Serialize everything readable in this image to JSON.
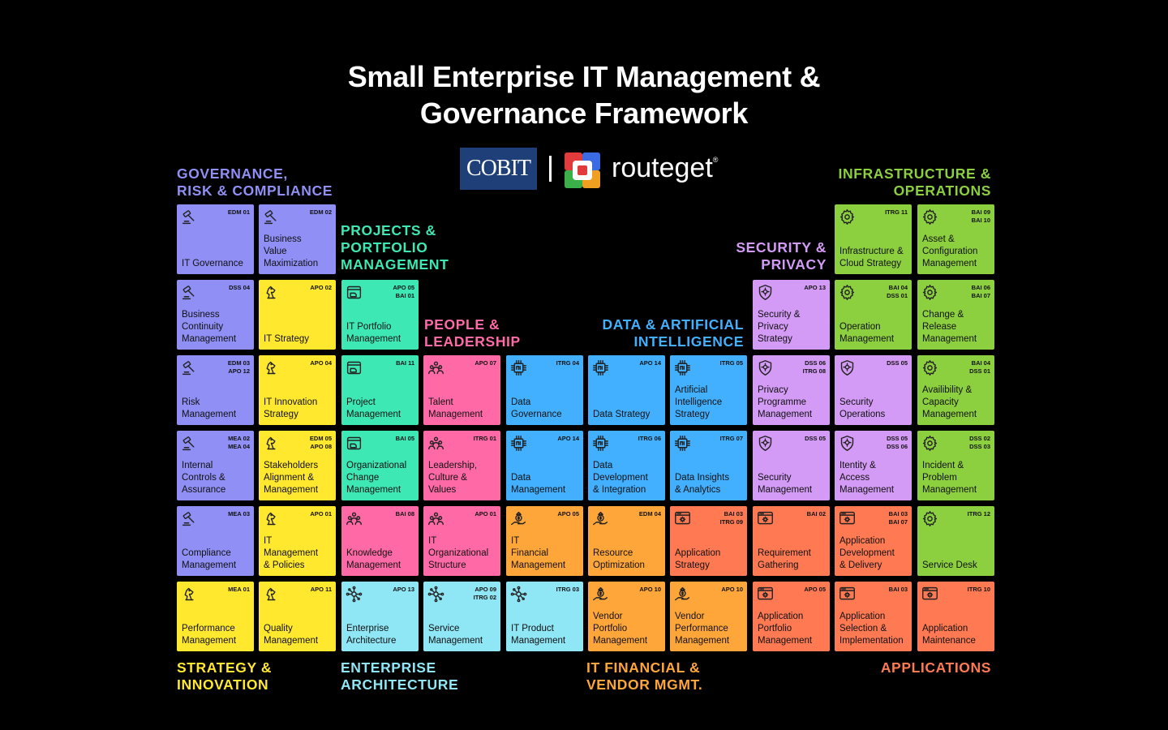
{
  "title": {
    "line1": "Small Enterprise IT Management &",
    "line2": "Governance Framework"
  },
  "logos": {
    "cobit": "COBIT",
    "brand": "routeget",
    "reg_mark": "®"
  },
  "categories": [
    {
      "id": "grc",
      "line1": "GOVERNANCE,",
      "line2": "RISK & COMPLIANCE",
      "color": "#8f8ff5"
    },
    {
      "id": "ppm",
      "line1": "PROJECTS &",
      "line2": "PORTFOLIO",
      "line3": "MANAGEMENT",
      "color": "#3de8b4"
    },
    {
      "id": "people",
      "line1": "PEOPLE &",
      "line2": "LEADERSHIP",
      "color": "#ff6aa6"
    },
    {
      "id": "data",
      "line1": "DATA & ARTIFICIAL",
      "line2": "INTELLIGENCE",
      "color": "#42b0ff"
    },
    {
      "id": "sec",
      "line1": "SECURITY &",
      "line2": "PRIVACY",
      "color": "#d39bf5"
    },
    {
      "id": "infra",
      "line1": "INFRASTRUCTURE &",
      "line2": "OPERATIONS",
      "color": "#8ccf3f"
    },
    {
      "id": "strategy",
      "line1": "STRATEGY &",
      "line2": "INNOVATION",
      "color": "#ffe82e"
    },
    {
      "id": "ea",
      "line1": "ENTERPRISE",
      "line2": "ARCHITECTURE",
      "color": "#8fe6f5"
    },
    {
      "id": "fin",
      "line1": "IT FINANCIAL &",
      "line2": "VENDOR MGMT.",
      "color": "#ffa63a"
    },
    {
      "id": "apps",
      "line1": "APPLICATIONS",
      "color": "#ff7a52"
    }
  ],
  "colors": {
    "grc": "#8f8ff5",
    "strategy": "#ffe82e",
    "ppm": "#3de8b4",
    "people": "#ff6aa6",
    "data": "#42b0ff",
    "sec": "#d39bf5",
    "infra": "#8ccf3f",
    "ea": "#8fe6f5",
    "fin": "#ffa63a",
    "apps": "#ff7a52"
  },
  "tiles": [
    {
      "row": 0,
      "col": 0,
      "cat": "grc",
      "icon": "gavel-icon",
      "code": "EDM 01",
      "name": "IT Governance"
    },
    {
      "row": 0,
      "col": 1,
      "cat": "grc",
      "icon": "gavel-icon",
      "code": "EDM 02",
      "name": "Business\nValue\nMaximization"
    },
    {
      "row": 0,
      "col": 8,
      "cat": "infra",
      "icon": "gear-icon",
      "code": "ITRG 11",
      "name": "Infrastructure &\nCloud Strategy"
    },
    {
      "row": 0,
      "col": 9,
      "cat": "infra",
      "icon": "gear-icon",
      "code": "BAI 09\nBAI 10",
      "name": "Asset &\nConfiguration\nManagement"
    },
    {
      "row": 1,
      "col": 0,
      "cat": "grc",
      "icon": "gavel-icon",
      "code": "DSS 04",
      "name": "Business\nContinuity\nManagement"
    },
    {
      "row": 1,
      "col": 1,
      "cat": "strategy",
      "icon": "chess-knight-icon",
      "code": "APO 02",
      "name": "IT Strategy"
    },
    {
      "row": 1,
      "col": 2,
      "cat": "ppm",
      "icon": "portfolio-window-icon",
      "code": "APO 05\nBAI 01",
      "name": "IT Portfolio\nManagement"
    },
    {
      "row": 1,
      "col": 7,
      "cat": "sec",
      "icon": "shield-virus-icon",
      "code": "APO 13",
      "name": "Security &\nPrivacy\nStrategy"
    },
    {
      "row": 1,
      "col": 8,
      "cat": "infra",
      "icon": "gear-icon",
      "code": "BAI 04\nDSS 01",
      "name": "Operation\nManagement"
    },
    {
      "row": 1,
      "col": 9,
      "cat": "infra",
      "icon": "gear-icon",
      "code": "BAI 06\nBAI 07",
      "name": "Change &\nRelease\nManagement"
    },
    {
      "row": 2,
      "col": 0,
      "cat": "grc",
      "icon": "gavel-icon",
      "code": "EDM 03\nAPO 12",
      "name": "Risk\nManagement"
    },
    {
      "row": 2,
      "col": 1,
      "cat": "strategy",
      "icon": "chess-knight-icon",
      "code": "APO 04",
      "name": "IT Innovation\nStrategy"
    },
    {
      "row": 2,
      "col": 2,
      "cat": "ppm",
      "icon": "portfolio-window-icon",
      "code": "BAI 11",
      "name": "Project\nManagement"
    },
    {
      "row": 2,
      "col": 3,
      "cat": "people",
      "icon": "people-group-icon",
      "code": "APO 07",
      "name": "Talent\nManagement"
    },
    {
      "row": 2,
      "col": 4,
      "cat": "data",
      "icon": "chip-icon",
      "code": "ITRG 04",
      "name": "Data\nGovernance"
    },
    {
      "row": 2,
      "col": 5,
      "cat": "data",
      "icon": "chip-icon",
      "code": "APO 14",
      "name": "Data Strategy"
    },
    {
      "row": 2,
      "col": 6,
      "cat": "data",
      "icon": "chip-icon",
      "code": "ITRG 05",
      "name": "Artificial\nIntelligence\nStrategy"
    },
    {
      "row": 2,
      "col": 7,
      "cat": "sec",
      "icon": "shield-virus-icon",
      "code": "DSS 06\nITRG 08",
      "name": "Privacy\nProgramme\nManagement"
    },
    {
      "row": 2,
      "col": 8,
      "cat": "sec",
      "icon": "shield-virus-icon",
      "code": "DSS 05",
      "name": "Security\nOperations"
    },
    {
      "row": 2,
      "col": 9,
      "cat": "infra",
      "icon": "gear-icon",
      "code": "BAI 04\nDSS 01",
      "name": "Availibility &\nCapacity\nManagement"
    },
    {
      "row": 3,
      "col": 0,
      "cat": "grc",
      "icon": "gavel-icon",
      "code": "MEA 02\nMEA 04",
      "name": "Internal\nControls &\nAssurance"
    },
    {
      "row": 3,
      "col": 1,
      "cat": "strategy",
      "icon": "chess-knight-icon",
      "code": "EDM 05\nAPO 08",
      "name": "Stakeholders\nAlignment &\nManagement"
    },
    {
      "row": 3,
      "col": 2,
      "cat": "ppm",
      "icon": "portfolio-window-icon",
      "code": "BAI 05",
      "name": "Organizational\nChange\nManagement"
    },
    {
      "row": 3,
      "col": 3,
      "cat": "people",
      "icon": "people-group-icon",
      "code": "ITRG 01",
      "name": "Leadership,\nCulture &\nValues"
    },
    {
      "row": 3,
      "col": 4,
      "cat": "data",
      "icon": "chip-icon",
      "code": "APO 14",
      "name": "Data\nManagement"
    },
    {
      "row": 3,
      "col": 5,
      "cat": "data",
      "icon": "chip-icon",
      "code": "ITRG 06",
      "name": "Data\nDevelopment\n& Integration"
    },
    {
      "row": 3,
      "col": 6,
      "cat": "data",
      "icon": "chip-icon",
      "code": "ITRG 07",
      "name": "Data Insights\n& Analytics"
    },
    {
      "row": 3,
      "col": 7,
      "cat": "sec",
      "icon": "shield-virus-icon",
      "code": "DSS 05",
      "name": "Security\nManagement"
    },
    {
      "row": 3,
      "col": 8,
      "cat": "sec",
      "icon": "shield-virus-icon",
      "code": "DSS 05\nDSS 06",
      "name": "Itentity &\nAccess\nManagement"
    },
    {
      "row": 3,
      "col": 9,
      "cat": "infra",
      "icon": "gear-icon",
      "code": "DSS 02\nDSS 03",
      "name": "Incident &\nProblem\nManagement"
    },
    {
      "row": 4,
      "col": 0,
      "cat": "grc",
      "icon": "gavel-icon",
      "code": "MEA 03",
      "name": "Compliance\nManagement"
    },
    {
      "row": 4,
      "col": 1,
      "cat": "strategy",
      "icon": "chess-knight-icon",
      "code": "APO 01",
      "name": "IT\nManagement\n& Policies"
    },
    {
      "row": 4,
      "col": 2,
      "cat": "people",
      "icon": "people-group-icon",
      "code": "BAI 08",
      "name": "Knowledge\nManagement"
    },
    {
      "row": 4,
      "col": 3,
      "cat": "people",
      "icon": "people-group-icon",
      "code": "APO 01",
      "name": "IT\nOrganizational\nStructure"
    },
    {
      "row": 4,
      "col": 4,
      "cat": "fin",
      "icon": "money-hand-icon",
      "code": "APO 05",
      "name": "IT\nFinancial\nManagement"
    },
    {
      "row": 4,
      "col": 5,
      "cat": "fin",
      "icon": "money-hand-icon",
      "code": "EDM 04",
      "name": "Resource\nOptimization"
    },
    {
      "row": 4,
      "col": 6,
      "cat": "apps",
      "icon": "app-window-gear-icon",
      "code": "BAI 03\nITRG 09",
      "name": "Application\nStrategy"
    },
    {
      "row": 4,
      "col": 7,
      "cat": "apps",
      "icon": "app-window-gear-icon",
      "code": "BAI 02",
      "name": "Requirement\nGathering"
    },
    {
      "row": 4,
      "col": 8,
      "cat": "apps",
      "icon": "app-window-gear-icon",
      "code": "BAI 03\nBAI 07",
      "name": "Application\nDevelopment\n& Delivery"
    },
    {
      "row": 4,
      "col": 9,
      "cat": "infra",
      "icon": "gear-icon",
      "code": "ITRG 12",
      "name": "Service Desk"
    },
    {
      "row": 5,
      "col": 0,
      "cat": "strategy",
      "icon": "chess-knight-icon",
      "code": "MEA 01",
      "name": "Performance\nManagement"
    },
    {
      "row": 5,
      "col": 1,
      "cat": "strategy",
      "icon": "chess-knight-icon",
      "code": "APO 11",
      "name": "Quality\nManagement"
    },
    {
      "row": 5,
      "col": 2,
      "cat": "ea",
      "icon": "network-nodes-icon",
      "code": "APO 13",
      "name": "Enterprise\nArchitecture"
    },
    {
      "row": 5,
      "col": 3,
      "cat": "ea",
      "icon": "network-nodes-icon",
      "code": "APO 09\nITRG 02",
      "name": "Service\nManagement"
    },
    {
      "row": 5,
      "col": 4,
      "cat": "ea",
      "icon": "network-nodes-icon",
      "code": "ITRG 03",
      "name": "IT Product\nManagement"
    },
    {
      "row": 5,
      "col": 5,
      "cat": "fin",
      "icon": "money-hand-icon",
      "code": "APO 10",
      "name": "Vendor\nPortfolio\nManagement"
    },
    {
      "row": 5,
      "col": 6,
      "cat": "fin",
      "icon": "money-hand-icon",
      "code": "APO 10",
      "name": "Vendor\nPerformance\nManagement"
    },
    {
      "row": 5,
      "col": 7,
      "cat": "apps",
      "icon": "app-window-gear-icon",
      "code": "APO 05",
      "name": "Application\nPortfolio\nManagement"
    },
    {
      "row": 5,
      "col": 8,
      "cat": "apps",
      "icon": "app-window-gear-icon",
      "code": "BAI 03",
      "name": "Application\nSelection &\nImplementation"
    },
    {
      "row": 5,
      "col": 9,
      "cat": "apps",
      "icon": "app-window-gear-icon",
      "code": "ITRG 10",
      "name": "Application\nMaintenance"
    }
  ]
}
